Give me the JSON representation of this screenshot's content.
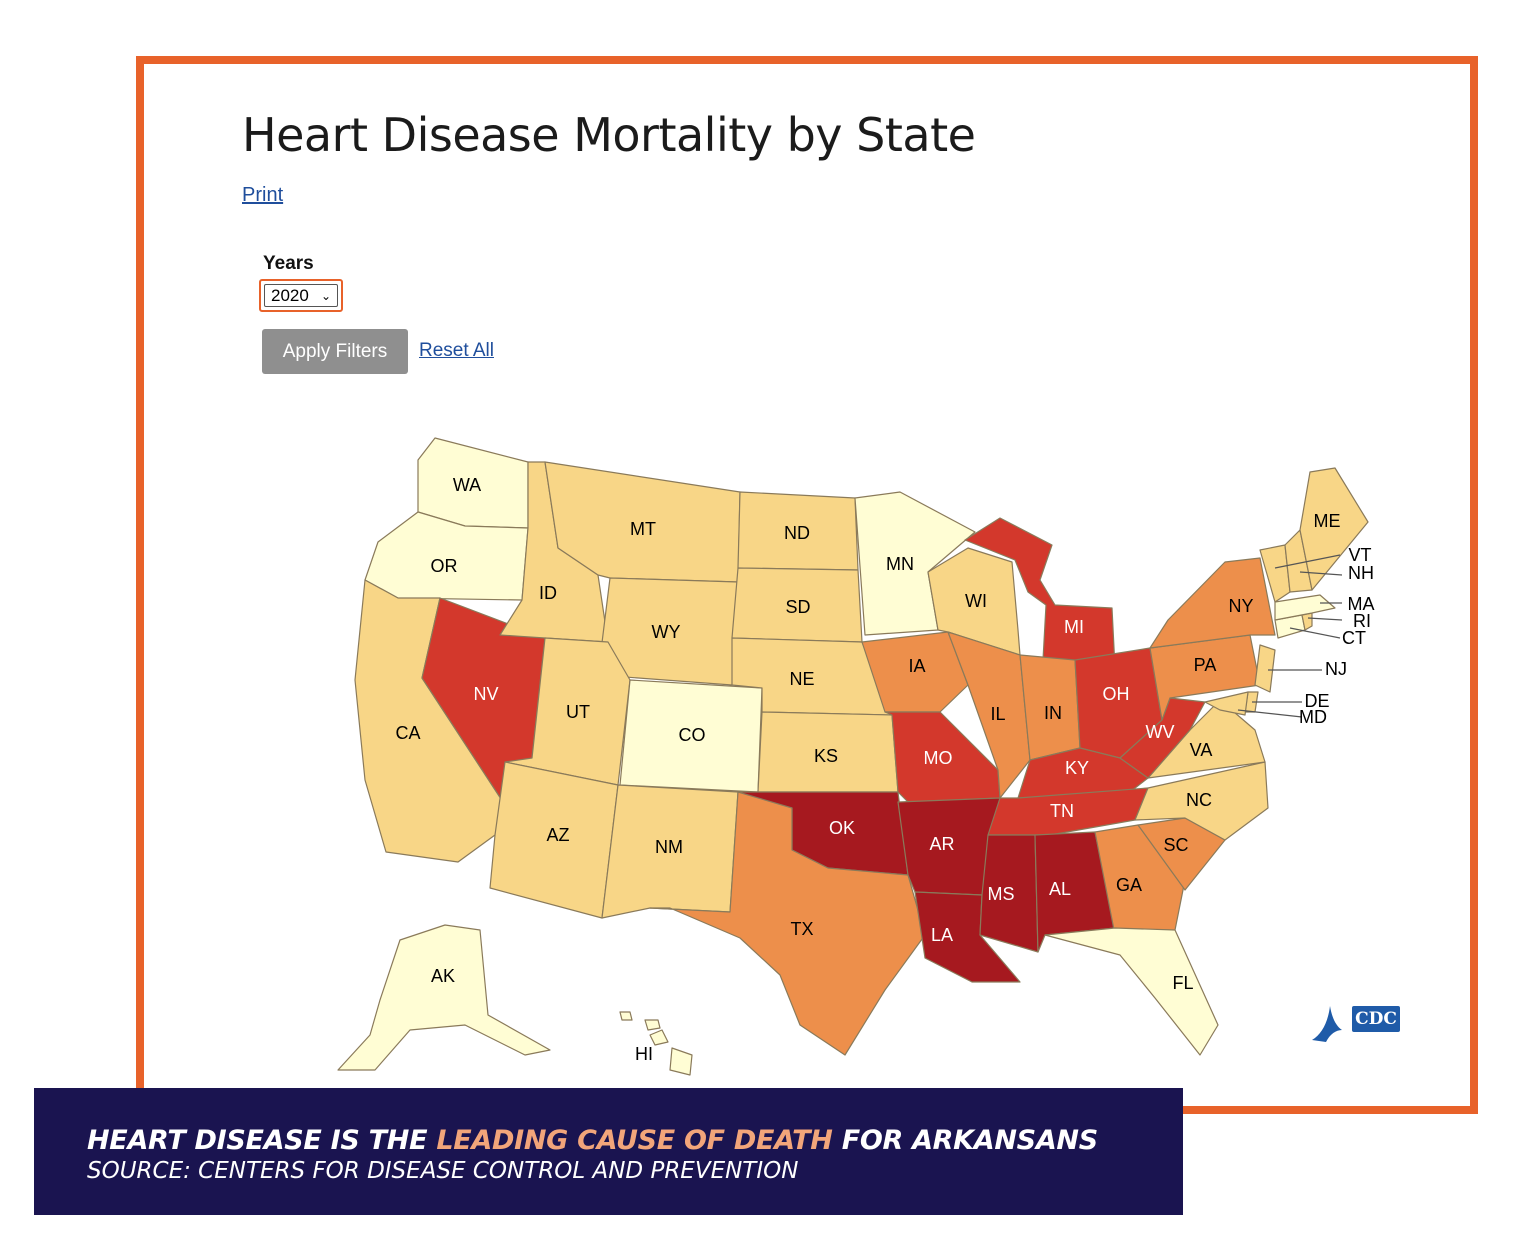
{
  "page": {
    "title": "Heart Disease Mortality by State",
    "print_label": "Print"
  },
  "filters": {
    "years_label": "Years",
    "year_selected": "2020",
    "apply_label": "Apply Filters",
    "reset_label": "Reset All"
  },
  "legend_colors": {
    "lowest": "#fffdd4",
    "low": "#f8d687",
    "mid": "#ed8f4b",
    "high": "#d3382c",
    "highest": "#a6191f"
  },
  "states": [
    {
      "abbr": "WA",
      "level": "lowest"
    },
    {
      "abbr": "OR",
      "level": "lowest"
    },
    {
      "abbr": "CA",
      "level": "low"
    },
    {
      "abbr": "NV",
      "level": "high"
    },
    {
      "abbr": "ID",
      "level": "low"
    },
    {
      "abbr": "MT",
      "level": "low"
    },
    {
      "abbr": "WY",
      "level": "low"
    },
    {
      "abbr": "UT",
      "level": "low"
    },
    {
      "abbr": "AZ",
      "level": "low"
    },
    {
      "abbr": "CO",
      "level": "lowest"
    },
    {
      "abbr": "NM",
      "level": "low"
    },
    {
      "abbr": "ND",
      "level": "low"
    },
    {
      "abbr": "SD",
      "level": "low"
    },
    {
      "abbr": "NE",
      "level": "low"
    },
    {
      "abbr": "KS",
      "level": "low"
    },
    {
      "abbr": "OK",
      "level": "highest"
    },
    {
      "abbr": "TX",
      "level": "mid"
    },
    {
      "abbr": "MN",
      "level": "lowest"
    },
    {
      "abbr": "IA",
      "level": "mid"
    },
    {
      "abbr": "MO",
      "level": "high"
    },
    {
      "abbr": "AR",
      "level": "highest"
    },
    {
      "abbr": "LA",
      "level": "highest"
    },
    {
      "abbr": "WI",
      "level": "low"
    },
    {
      "abbr": "IL",
      "level": "mid"
    },
    {
      "abbr": "MI",
      "level": "high"
    },
    {
      "abbr": "IN",
      "level": "mid"
    },
    {
      "abbr": "OH",
      "level": "high"
    },
    {
      "abbr": "KY",
      "level": "high"
    },
    {
      "abbr": "TN",
      "level": "high"
    },
    {
      "abbr": "MS",
      "level": "highest"
    },
    {
      "abbr": "AL",
      "level": "highest"
    },
    {
      "abbr": "GA",
      "level": "mid"
    },
    {
      "abbr": "FL",
      "level": "lowest"
    },
    {
      "abbr": "SC",
      "level": "mid"
    },
    {
      "abbr": "NC",
      "level": "low"
    },
    {
      "abbr": "VA",
      "level": "low"
    },
    {
      "abbr": "WV",
      "level": "high"
    },
    {
      "abbr": "PA",
      "level": "mid"
    },
    {
      "abbr": "NY",
      "level": "mid"
    },
    {
      "abbr": "ME",
      "level": "low"
    },
    {
      "abbr": "VT",
      "level": "low"
    },
    {
      "abbr": "NH",
      "level": "low"
    },
    {
      "abbr": "MA",
      "level": "lowest"
    },
    {
      "abbr": "RI",
      "level": "low"
    },
    {
      "abbr": "CT",
      "level": "lowest"
    },
    {
      "abbr": "NJ",
      "level": "low"
    },
    {
      "abbr": "DE",
      "level": "low"
    },
    {
      "abbr": "MD",
      "level": "low"
    },
    {
      "abbr": "AK",
      "level": "lowest"
    },
    {
      "abbr": "HI",
      "level": "lowest"
    }
  ],
  "logo": {
    "text": "CDC",
    "color": "#1f5ba8"
  },
  "banner": {
    "line1_pre": "HEART DISEASE IS THE ",
    "line1_highlight": "LEADING CAUSE OF DEATH",
    "line1_post": " FOR ARKANSANS",
    "line2": "SOURCE: CENTERS FOR DISEASE CONTROL AND PREVENTION"
  }
}
